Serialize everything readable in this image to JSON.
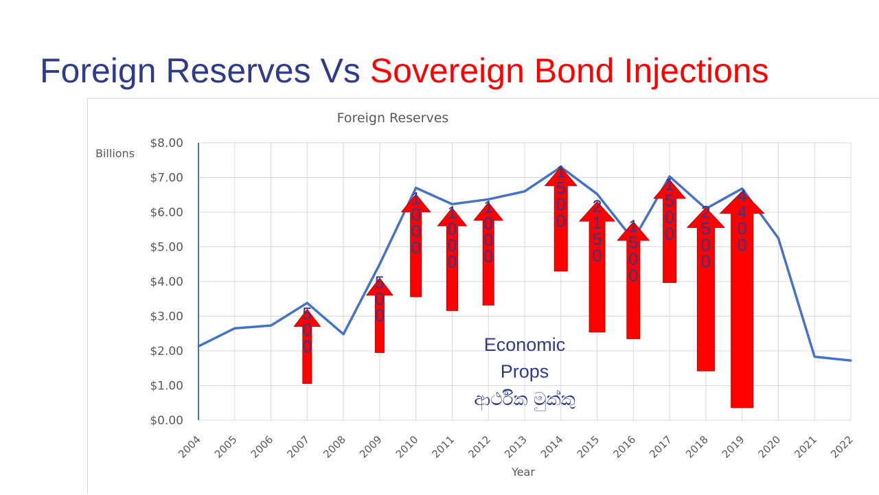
{
  "slide": {
    "title_part1": "Foreign Reserves Vs ",
    "title_part2": "Sovereign Bond Injections"
  },
  "colors": {
    "title_blue": "#2e3a8c",
    "title_red": "#ff0000",
    "line": "#4472c4",
    "arrow": "#ff0000",
    "arrow_text": "#2e3a8c",
    "annotation": "#2e3a8c"
  },
  "chart_data": {
    "type": "line",
    "title": "Foreign Reserves",
    "xlabel": "Year",
    "ylabel": "Billions",
    "ylim": [
      0,
      8
    ],
    "yticks": [
      "$0.00",
      "$1.00",
      "$2.00",
      "$3.00",
      "$4.00",
      "$5.00",
      "$6.00",
      "$7.00",
      "$8.00"
    ],
    "grid": true,
    "categories": [
      "2004",
      "2005",
      "2006",
      "2007",
      "2008",
      "2009",
      "2010",
      "2011",
      "2012",
      "2013",
      "2014",
      "2015",
      "2016",
      "2017",
      "2018",
      "2019",
      "2020",
      "2021",
      "2022"
    ],
    "series": [
      {
        "name": "",
        "values": [
          2.13,
          2.65,
          2.73,
          3.38,
          2.48,
          4.5,
          6.7,
          6.23,
          6.37,
          6.6,
          7.3,
          6.52,
          5.2,
          7.03,
          6.1,
          6.68,
          5.25,
          1.83,
          1.72
        ]
      }
    ],
    "bond_injections": [
      {
        "year": "2007",
        "label": "500",
        "bottom": 1.06,
        "top": 3.2
      },
      {
        "year": "2009",
        "label": "500",
        "bottom": 1.95,
        "top": 4.1
      },
      {
        "year": "2010",
        "label": "1000",
        "bottom": 3.56,
        "top": 6.52
      },
      {
        "year": "2011",
        "label": "1000",
        "bottom": 3.16,
        "top": 6.12
      },
      {
        "year": "2012",
        "label": "1000",
        "bottom": 3.32,
        "top": 6.28
      },
      {
        "year": "2014",
        "label": "1500",
        "bottom": 4.3,
        "top": 7.3
      },
      {
        "year": "2015",
        "label": "2150",
        "bottom": 2.54,
        "top": 6.3
      },
      {
        "year": "2016",
        "label": "1500",
        "bottom": 2.35,
        "top": 5.72
      },
      {
        "year": "2017",
        "label": "1500",
        "bottom": 3.97,
        "top": 6.93
      },
      {
        "year": "2018",
        "label": "2500",
        "bottom": 1.42,
        "top": 6.13
      },
      {
        "year": "2019",
        "label": "4400",
        "bottom": 0.36,
        "top": 6.6
      }
    ],
    "annotation": [
      "Economic",
      "Props",
      "ආර්ථික මුක්කු"
    ]
  }
}
